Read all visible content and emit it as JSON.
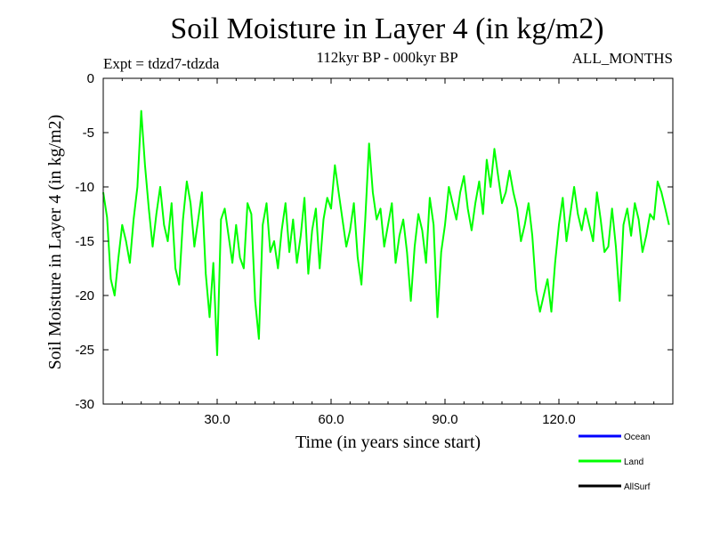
{
  "chart_data": {
    "type": "line",
    "title": "Soil Moisture in Layer 4 (in kg/m2)",
    "experiment_label": "Expt = tdzd7-tdzda",
    "period_label": "112kyr BP - 000kyr BP",
    "season_label": "ALL_MONTHS",
    "xlabel": "Time (in years since start)",
    "ylabel": "Soil Moisture in Layer 4 (in kg/m2)",
    "xlim": [
      0,
      150
    ],
    "ylim": [
      -30,
      0
    ],
    "x_ticks": [
      30,
      60,
      90,
      120
    ],
    "x_tick_labels": [
      "30.0",
      "60.0",
      "90.0",
      "120.0"
    ],
    "y_ticks": [
      0,
      -5,
      -10,
      -15,
      -20,
      -25,
      -30
    ],
    "y_tick_labels": [
      "0",
      "-5",
      "-10",
      "-15",
      "-20",
      "-25",
      "-30"
    ],
    "grid": false,
    "legend_position": "bottom-right",
    "series": [
      {
        "name": "Ocean",
        "color": "#0000ff",
        "values": []
      },
      {
        "name": "Land",
        "color": "#00ff00",
        "x_start": 0,
        "x_step": 1,
        "values": [
          -10.5,
          -12.8,
          -18.5,
          -20.0,
          -16.5,
          -13.5,
          -15.0,
          -17.0,
          -13.0,
          -10.0,
          -3.0,
          -8.0,
          -12.0,
          -15.5,
          -12.5,
          -10.0,
          -13.5,
          -15.0,
          -11.5,
          -17.5,
          -19.0,
          -13.0,
          -9.5,
          -11.5,
          -15.5,
          -13.0,
          -10.5,
          -18.0,
          -22.0,
          -17.0,
          -25.5,
          -13.0,
          -12.0,
          -14.5,
          -17.0,
          -13.5,
          -16.5,
          -17.5,
          -11.5,
          -12.5,
          -20.5,
          -24.0,
          -13.5,
          -11.5,
          -16.0,
          -15.0,
          -17.5,
          -14.0,
          -11.5,
          -16.0,
          -13.0,
          -17.0,
          -14.5,
          -11.0,
          -18.0,
          -14.0,
          -12.0,
          -17.5,
          -13.0,
          -11.0,
          -12.0,
          -8.0,
          -10.5,
          -13.0,
          -15.5,
          -14.0,
          -11.5,
          -16.5,
          -19.0,
          -13.0,
          -6.0,
          -10.5,
          -13.0,
          -12.0,
          -15.5,
          -13.5,
          -11.5,
          -17.0,
          -14.5,
          -13.0,
          -16.0,
          -20.5,
          -15.5,
          -12.5,
          -14.0,
          -17.0,
          -11.0,
          -13.5,
          -22.0,
          -16.0,
          -13.5,
          -10.0,
          -11.5,
          -13.0,
          -10.5,
          -9.0,
          -12.0,
          -14.0,
          -11.5,
          -9.5,
          -12.5,
          -7.5,
          -10.0,
          -6.5,
          -9.0,
          -11.5,
          -10.5,
          -8.5,
          -10.5,
          -12.0,
          -15.0,
          -13.5,
          -11.5,
          -14.5,
          -19.5,
          -21.5,
          -20.0,
          -18.5,
          -21.5,
          -17.0,
          -13.5,
          -11.0,
          -15.0,
          -12.5,
          -10.0,
          -12.5,
          -14.0,
          -12.0,
          -13.5,
          -15.0,
          -10.5,
          -13.0,
          -16.0,
          -15.5,
          -12.0,
          -15.5,
          -20.5,
          -13.5,
          -12.0,
          -14.5,
          -11.5,
          -13.0,
          -16.0,
          -14.5,
          -12.5,
          -13.0,
          -9.5,
          -10.5,
          -12.0,
          -13.5
        ]
      },
      {
        "name": "AllSurf",
        "color": "#000000",
        "values": []
      }
    ]
  }
}
